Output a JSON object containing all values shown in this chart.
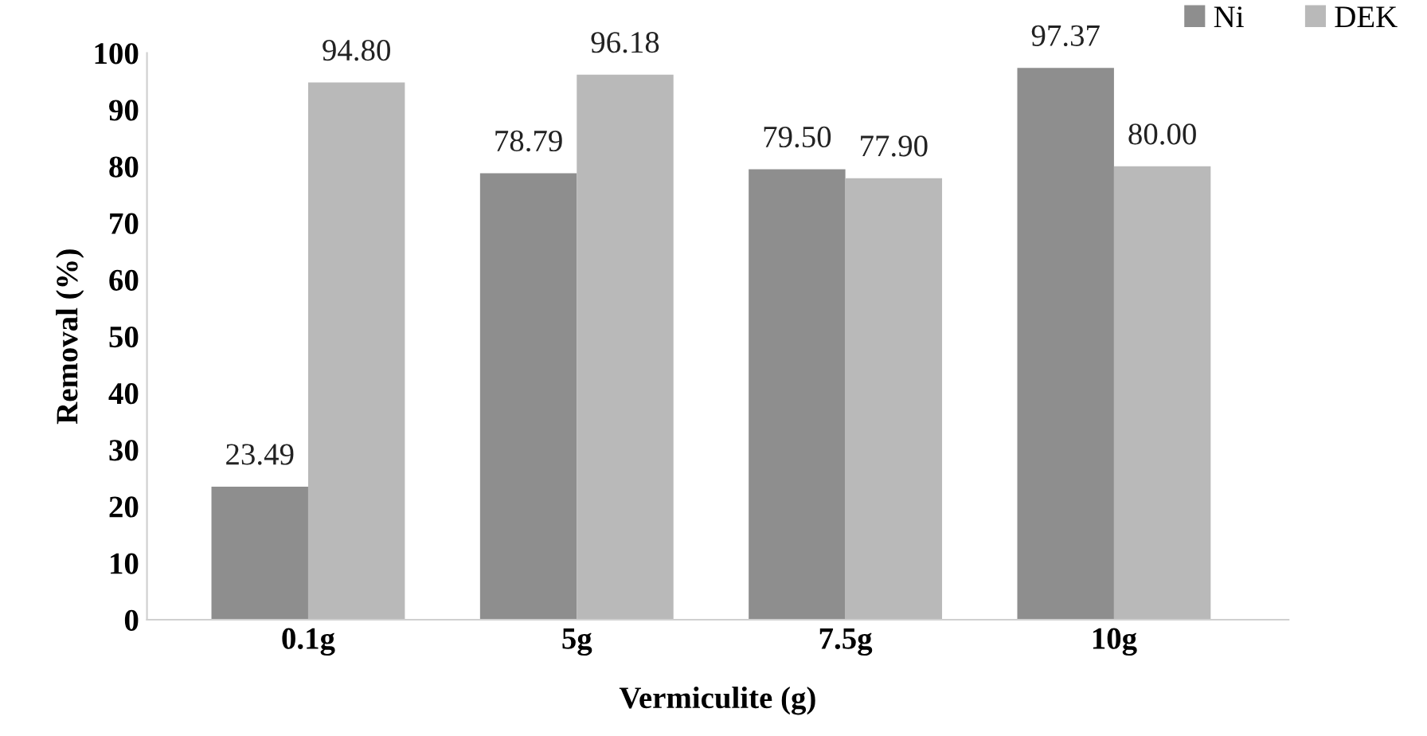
{
  "chart_data": {
    "type": "bar",
    "xlabel": "Vermiculite (g)",
    "ylabel": "Removal (%)",
    "categories": [
      "0.1g",
      "5g",
      "7.5g",
      "10g"
    ],
    "series": [
      {
        "name": "Ni",
        "color": "#8e8e8e",
        "values": [
          23.49,
          78.79,
          79.5,
          97.37
        ],
        "value_labels": [
          "23.49",
          "78.79",
          "79.50",
          "97.37"
        ]
      },
      {
        "name": "DEK",
        "color": "#b9b9b9",
        "values": [
          94.8,
          96.18,
          77.9,
          80.0
        ],
        "value_labels": [
          "94.80",
          "96.18",
          "77.90",
          "80.00"
        ]
      }
    ],
    "ylim": [
      0,
      100
    ],
    "yticks": [
      0,
      10,
      20,
      30,
      40,
      50,
      60,
      70,
      80,
      90,
      100
    ],
    "grid": false,
    "legend": "top right"
  }
}
